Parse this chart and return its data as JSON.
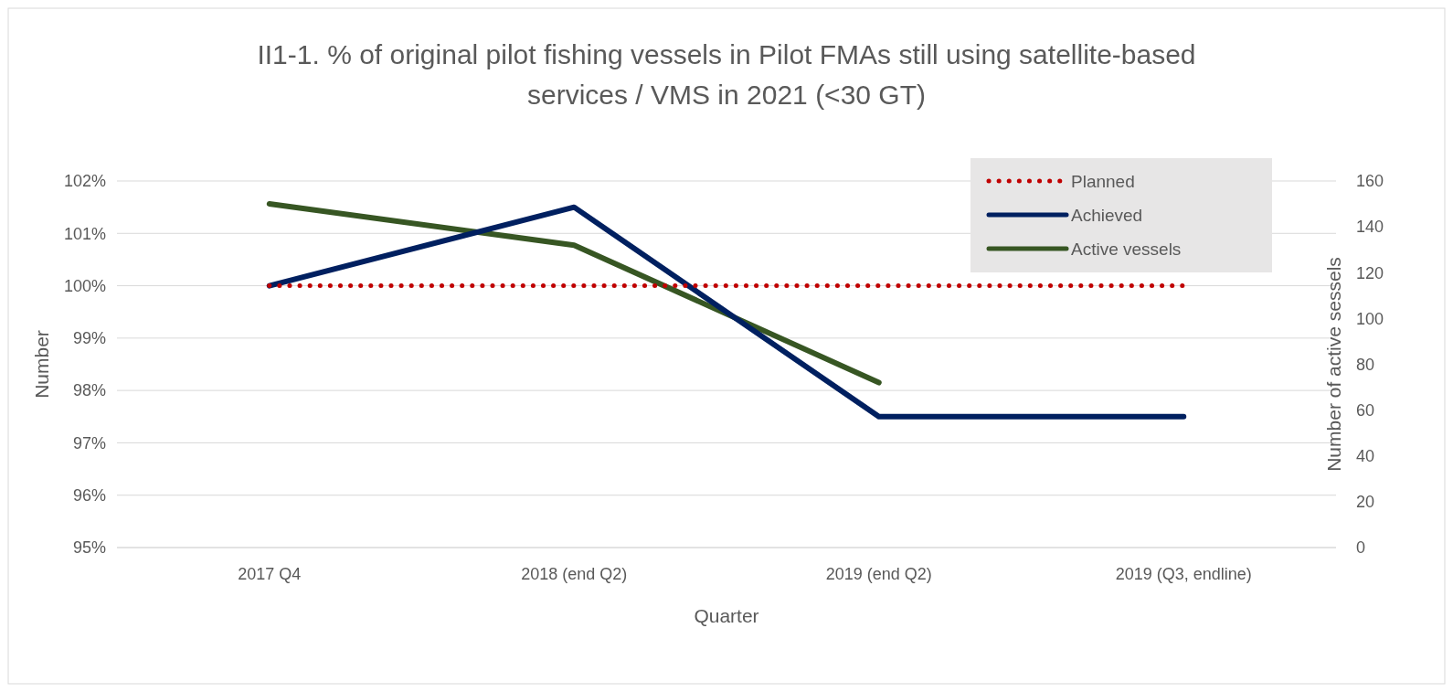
{
  "chart_data": {
    "type": "line",
    "title": "II1-1. % of original pilot fishing vessels in Pilot FMAs still using satellite-based services / VMS in 2021 (<30 GT)",
    "xlabel": "Quarter",
    "ylabel": "Number",
    "y2label": "Number of active sessels",
    "categories": [
      "2017 Q4",
      "2018 (end Q2)",
      "2019 (end Q2)",
      "2019 (Q3, endline)"
    ],
    "series": [
      {
        "name": "Planned",
        "color": "#c00000",
        "line_style": "dotted",
        "values": [
          100,
          100,
          100,
          100
        ]
      },
      {
        "name": "Achieved",
        "color": "#002060",
        "line_style": "solid",
        "values": [
          100,
          101.5,
          97.5,
          97.5
        ]
      },
      {
        "name": "Active vessels",
        "color": "#375623",
        "line_style": "solid",
        "axis": "y2",
        "values": [
          150,
          132,
          72,
          null
        ]
      }
    ],
    "ylim": [
      95,
      102
    ],
    "yticks": [
      {
        "value": 95,
        "label": "95%"
      },
      {
        "value": 96,
        "label": "96%"
      },
      {
        "value": 97,
        "label": "97%"
      },
      {
        "value": 98,
        "label": "98%"
      },
      {
        "value": 99,
        "label": "99%"
      },
      {
        "value": 100,
        "label": "100%"
      },
      {
        "value": 101,
        "label": "101%"
      },
      {
        "value": 102,
        "label": "102%"
      }
    ],
    "y2lim": [
      0,
      160
    ],
    "y2ticks": [
      0,
      20,
      40,
      60,
      80,
      100,
      120,
      140,
      160
    ],
    "grid": "y",
    "legend": "top right",
    "marker": "none"
  }
}
